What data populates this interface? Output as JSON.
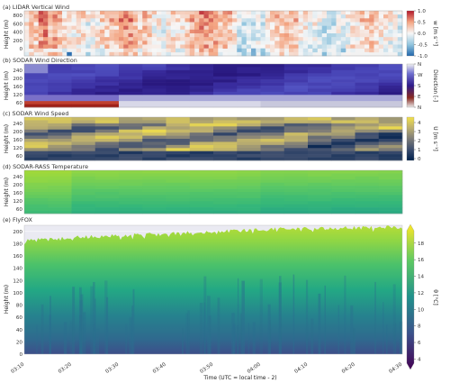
{
  "chart_data": [
    {
      "type": "heatmap",
      "title": "(a) LIDAR Vertical Wind",
      "ylabel": "Height (m)",
      "yticks": [
        "800",
        "600",
        "400",
        "200",
        "0"
      ],
      "ylim": [
        0,
        900
      ],
      "colorbar": {
        "label": "w [m s⁻¹]",
        "ticks": [
          "1.0",
          "0.5",
          "0.0",
          "-0.5",
          "-1.0"
        ],
        "range": [
          -1.0,
          1.0
        ],
        "colors": [
          "#2166ac",
          "#92c5de",
          "#f7f7f7",
          "#f4a582",
          "#b2182b"
        ]
      }
    },
    {
      "type": "heatmap",
      "title": "(b) SODAR Wind Direction",
      "ylabel": "Height (m)",
      "yticks": [
        "240",
        "200",
        "160",
        "120",
        "60"
      ],
      "colorbar": {
        "label": "Direction [-]",
        "ticks": [
          "N",
          "W",
          "S",
          "E",
          "N"
        ],
        "colors": [
          "#f0f0f0",
          "#6f6fd0",
          "#2e1a8a",
          "#a01818",
          "#e0e0e0"
        ]
      }
    },
    {
      "type": "heatmap",
      "title": "(c) SODAR Wind Speed",
      "ylabel": "Height (m)",
      "yticks": [
        "240",
        "200",
        "160",
        "120",
        "60"
      ],
      "colorbar": {
        "label": "U [m s⁻¹]",
        "ticks": [
          "4",
          "3",
          "2",
          "1",
          "0"
        ],
        "range": [
          0,
          4.5
        ],
        "colors": [
          "#00204d",
          "#3c4d6e",
          "#7c7b78",
          "#bcaf6f",
          "#f2e04a"
        ]
      }
    },
    {
      "type": "heatmap",
      "title": "(d) SODAR-RASS Temperature",
      "ylabel": "Height (m)",
      "yticks": [
        "240",
        "200",
        "160",
        "120",
        "60"
      ],
      "colorbar": null
    },
    {
      "type": "area",
      "title": "(e) FlyFOX",
      "ylabel": "Height (m)",
      "xlabel": "Time (UTC = local time - 2)",
      "xticks": [
        "03:10",
        "03:20",
        "03:30",
        "03:40",
        "03:50",
        "04:00",
        "04:10",
        "04:20",
        "04:30"
      ],
      "yticks": [
        "200",
        "180",
        "160",
        "140",
        "120",
        "100",
        "80",
        "60",
        "40",
        "20",
        "0"
      ],
      "ylim": [
        0,
        210
      ],
      "top_height_approx": [
        185,
        190,
        193,
        196,
        200,
        203,
        205,
        206,
        207
      ],
      "colorbar": {
        "label": "θ [°C]",
        "ticks": [
          "18",
          "16",
          "14",
          "12",
          "10",
          "8",
          "6",
          "4"
        ],
        "range": [
          3.5,
          19.5
        ],
        "colors": [
          "#440154",
          "#3b528b",
          "#21918c",
          "#5ec962",
          "#fde725"
        ]
      }
    }
  ]
}
